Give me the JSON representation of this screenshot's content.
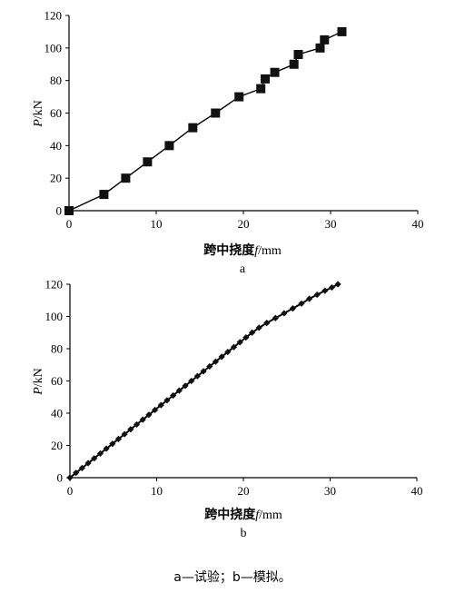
{
  "chart_data": [
    {
      "type": "line",
      "panel_label": "a",
      "xlabel_cn": "跨中挠度",
      "xlabel_var": "f",
      "xlabel_unit": "/mm",
      "ylabel_var": "P",
      "ylabel_unit": "/kN",
      "xlim": [
        0,
        40
      ],
      "ylim": [
        0,
        120
      ],
      "xticks": [
        "0",
        "10",
        "20",
        "30",
        "40"
      ],
      "yticks": [
        "0",
        "20",
        "40",
        "60",
        "80",
        "100",
        "120"
      ],
      "grid": false,
      "marker": "square",
      "series": [
        {
          "x": [
            0,
            4,
            6.5,
            9,
            11.5,
            14.2,
            16.8,
            19.5,
            22,
            22.5,
            23.6,
            25.8,
            26.3,
            28.8,
            29.3,
            31.3
          ],
          "y": [
            0,
            10,
            20,
            30,
            40,
            51,
            60,
            70,
            75,
            81,
            85,
            90,
            96,
            100,
            105,
            110
          ]
        }
      ]
    },
    {
      "type": "line",
      "panel_label": "b",
      "xlabel_cn": "跨中挠度",
      "xlabel_var": "f",
      "xlabel_unit": "/mm",
      "ylabel_var": "P",
      "ylabel_unit": "/kN",
      "xlim": [
        0,
        40
      ],
      "ylim": [
        0,
        120
      ],
      "xticks": [
        "0",
        "10",
        "20",
        "30",
        "40"
      ],
      "yticks": [
        "0",
        "20",
        "40",
        "60",
        "80",
        "100",
        "120"
      ],
      "grid": false,
      "marker": "diamond",
      "series": [
        {
          "x": [
            0,
            0.7,
            1.4,
            2.1,
            2.8,
            3.5,
            4.2,
            4.9,
            5.6,
            6.3,
            7.0,
            7.7,
            8.4,
            9.1,
            9.8,
            10.5,
            11.2,
            11.9,
            12.6,
            13.3,
            14.0,
            14.7,
            15.4,
            16.1,
            16.8,
            17.5,
            18.2,
            18.9,
            19.6,
            20.3,
            21.0,
            21.8,
            22.7,
            23.7,
            24.7,
            25.7,
            26.7,
            27.6,
            28.5,
            29.4,
            30.2,
            30.9
          ],
          "y": [
            0,
            3,
            6,
            9,
            12,
            15,
            18,
            21,
            24,
            27,
            30,
            33,
            36,
            39,
            42,
            45,
            48,
            51,
            54,
            57,
            60,
            63,
            66,
            69,
            72,
            75,
            78,
            81,
            84,
            87,
            90,
            93,
            96,
            99,
            102,
            105,
            108,
            111,
            113.5,
            116,
            118,
            120
          ]
        }
      ]
    }
  ],
  "caption": "a—试验；b—模拟。"
}
